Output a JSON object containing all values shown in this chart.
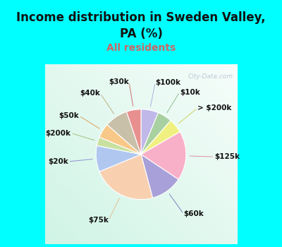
{
  "title": "Income distribution in Sweden Valley,\nPA (%)",
  "subtitle": "All residents",
  "title_color": "#111111",
  "subtitle_color": "#cc6666",
  "background_color": "#00ffff",
  "labels": [
    "$100k",
    "$10k",
    "> $200k",
    "$125k",
    "$60k",
    "$75k",
    "$20k",
    "$200k",
    "$50k",
    "$40k",
    "$30k"
  ],
  "values": [
    6,
    5,
    5,
    17,
    11,
    22,
    9,
    3,
    5,
    8,
    5
  ],
  "colors": [
    "#c0b8e8",
    "#a8d0a0",
    "#f0f080",
    "#f8b0c8",
    "#a8a0d8",
    "#f8d0b0",
    "#b0c8f0",
    "#c8e0a0",
    "#f8c888",
    "#c8c0a8",
    "#e89090"
  ],
  "label_fontsize": 7.5,
  "title_fontsize": 12,
  "subtitle_fontsize": 10,
  "figsize": [
    4.0,
    3.5
  ],
  "dpi": 100,
  "watermark": "City-Data.com"
}
